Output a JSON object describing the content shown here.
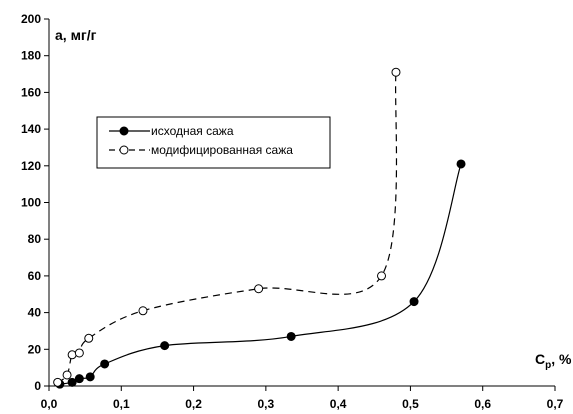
{
  "chart_data": {
    "type": "line",
    "xlabel_main": "C",
    "xlabel_sub": "p",
    "xlabel_unit": ", %",
    "ylabel": "a, мг/г",
    "xlim": [
      0.0,
      0.7
    ],
    "ylim": [
      0,
      200
    ],
    "x_ticks": [
      "0,0",
      "0,1",
      "0,2",
      "0,3",
      "0,4",
      "0,5",
      "0,6",
      "0,7"
    ],
    "y_ticks": [
      "0",
      "20",
      "40",
      "60",
      "80",
      "100",
      "120",
      "140",
      "160",
      "180",
      "200"
    ],
    "grid": false,
    "legend_position": "top-left",
    "series": [
      {
        "name": "исходная сажа",
        "marker": "filled-circle",
        "line_style": "solid",
        "x": [
          0.015,
          0.032,
          0.042,
          0.057,
          0.077,
          0.16,
          0.335,
          0.505,
          0.57
        ],
        "y": [
          1,
          2,
          4,
          5,
          12,
          22,
          27,
          46,
          121
        ]
      },
      {
        "name": "модифицированная сажа",
        "marker": "open-circle",
        "line_style": "dashed",
        "x": [
          0.012,
          0.025,
          0.032,
          0.042,
          0.055,
          0.13,
          0.29,
          0.46,
          0.48
        ],
        "y": [
          2,
          6,
          17,
          18,
          26,
          41,
          53,
          60,
          171
        ]
      }
    ]
  }
}
